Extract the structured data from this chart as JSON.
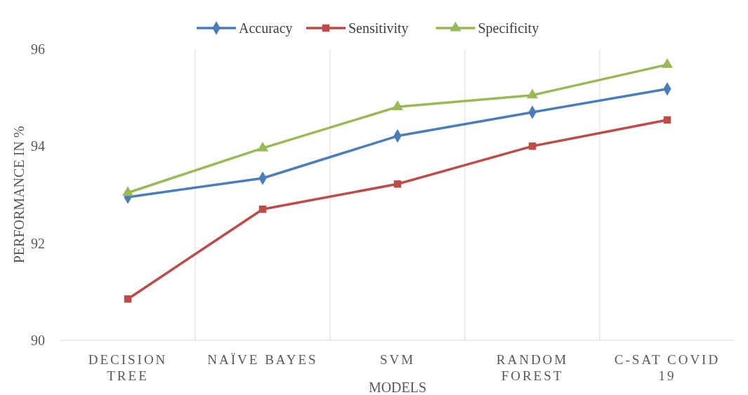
{
  "chart_data": {
    "type": "line",
    "xlabel": "MODELS",
    "ylabel": "PERFORMANCE IN %",
    "categories": [
      "DECISION TREE",
      "NAÏVE BAYES",
      "SVM",
      "RANDOM FOREST",
      "C-SAT COVID 19"
    ],
    "series": [
      {
        "name": "Accuracy",
        "color": "#4a7ebb",
        "marker": "diamond",
        "values": [
          92.95,
          93.34,
          94.21,
          94.7,
          95.18
        ]
      },
      {
        "name": "Sensitivity",
        "color": "#be4b48",
        "marker": "square",
        "values": [
          90.85,
          92.7,
          93.22,
          94.0,
          94.54
        ]
      },
      {
        "name": "Specificity",
        "color": "#98b954",
        "marker": "triangle",
        "values": [
          93.04,
          93.96,
          94.81,
          95.05,
          95.68
        ]
      }
    ],
    "ylim": [
      90,
      96
    ],
    "yticks": [
      90,
      92,
      94,
      96
    ],
    "grid": "x",
    "legend": "top",
    "line_style": "solid"
  }
}
